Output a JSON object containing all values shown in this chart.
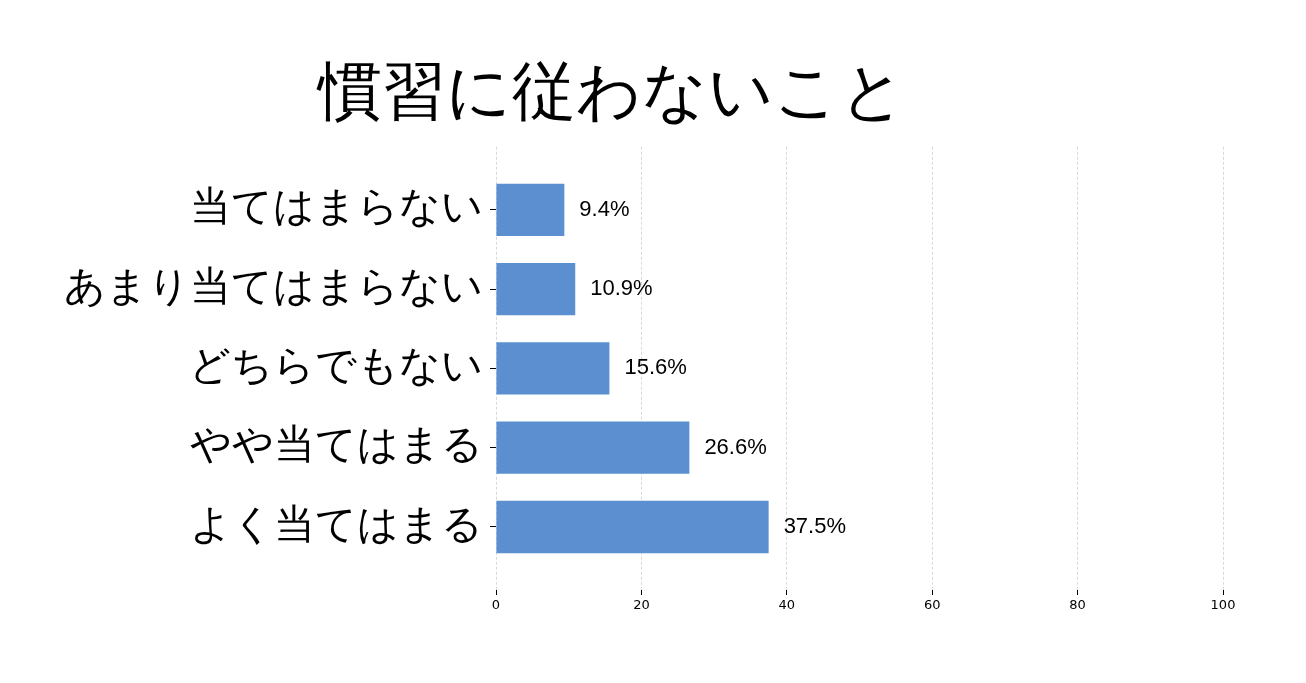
{
  "chart_data": {
    "type": "bar",
    "orientation": "horizontal",
    "title": "慣習に従わないこと",
    "categories": [
      "当てはまらない",
      "あまり当てはまらない",
      "どちらでもない",
      "やや当てはまる",
      "よく当てはまる"
    ],
    "values": [
      9.4,
      10.9,
      15.6,
      26.6,
      37.5
    ],
    "value_labels": [
      "9.4%",
      "10.9%",
      "15.6%",
      "26.6%",
      "37.5%"
    ],
    "color": "#5b8fd0",
    "xlim": [
      0,
      100
    ],
    "xticks": [
      0,
      20,
      40,
      60,
      80,
      100
    ],
    "grid": "x"
  }
}
